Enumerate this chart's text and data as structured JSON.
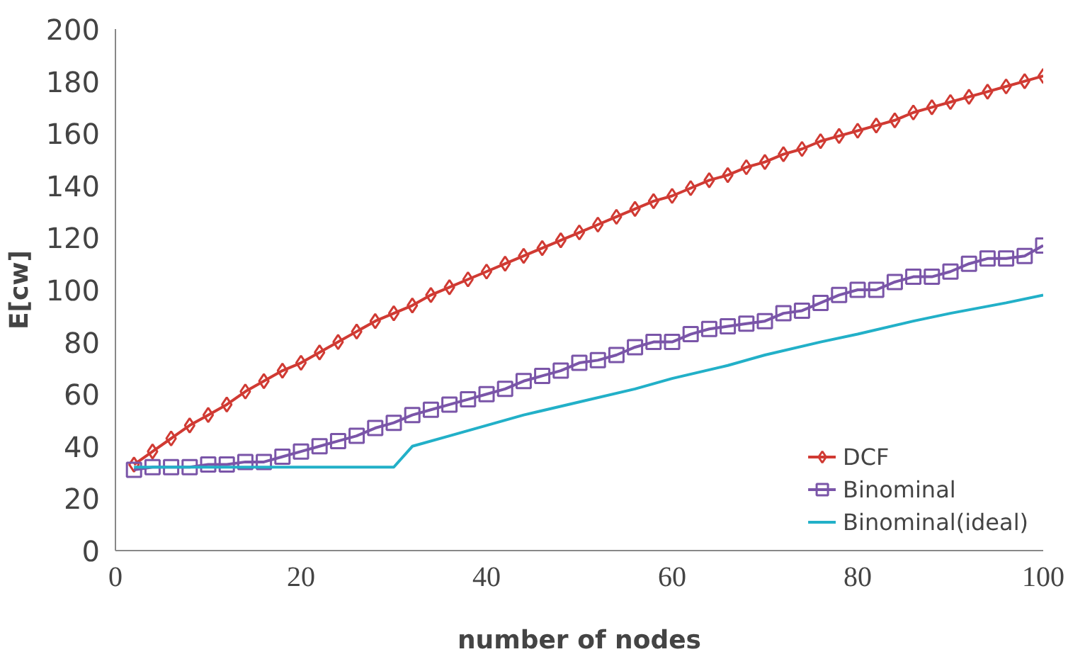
{
  "chart_data": {
    "type": "line",
    "xlabel": "number of nodes",
    "ylabel": "E[cw]",
    "xlim": [
      0,
      100
    ],
    "xticks": [
      0,
      20,
      40,
      60,
      80,
      100
    ],
    "ylim": [
      0,
      200
    ],
    "yticks": [
      0,
      20,
      40,
      60,
      80,
      100,
      120,
      140,
      160,
      180,
      200
    ],
    "grid": false,
    "legend": "bottom right",
    "line_style": "solid",
    "x": [
      2,
      4,
      6,
      8,
      10,
      12,
      14,
      16,
      18,
      20,
      22,
      24,
      26,
      28,
      30,
      32,
      34,
      36,
      38,
      40,
      42,
      44,
      46,
      48,
      50,
      52,
      54,
      56,
      58,
      60,
      62,
      64,
      66,
      68,
      70,
      72,
      74,
      76,
      78,
      80,
      82,
      84,
      86,
      88,
      90,
      92,
      94,
      96,
      98,
      100
    ],
    "series": [
      {
        "name": "DCF",
        "color": "#d03a33",
        "marker": "diamond",
        "values": [
          33,
          38,
          43,
          48,
          52,
          56,
          61,
          65,
          69,
          72,
          76,
          80,
          84,
          88,
          91,
          94,
          98,
          101,
          104,
          107,
          110,
          113,
          116,
          119,
          122,
          125,
          128,
          131,
          134,
          136,
          139,
          142,
          144,
          147,
          149,
          152,
          154,
          157,
          159,
          161,
          163,
          165,
          168,
          170,
          172,
          174,
          176,
          178,
          180,
          182
        ]
      },
      {
        "name": "Binominal",
        "color": "#7a55a8",
        "marker": "square",
        "values": [
          31,
          32,
          32,
          32,
          33,
          33,
          34,
          34,
          36,
          38,
          40,
          42,
          44,
          47,
          49,
          52,
          54,
          56,
          58,
          60,
          62,
          65,
          67,
          69,
          72,
          73,
          75,
          78,
          80,
          80,
          83,
          85,
          86,
          87,
          88,
          91,
          92,
          95,
          98,
          100,
          100,
          103,
          105,
          105,
          107,
          110,
          112,
          112,
          113,
          117
        ]
      },
      {
        "name": "Binominal(ideal)",
        "color": "#22b0c8",
        "marker": "none",
        "x": [
          2,
          30,
          32,
          36,
          40,
          44,
          50,
          56,
          60,
          66,
          70,
          76,
          80,
          86,
          90,
          96,
          100
        ],
        "values": [
          32,
          32,
          40,
          44,
          48,
          52,
          57,
          62,
          66,
          71,
          75,
          80,
          83,
          88,
          91,
          95,
          98
        ]
      }
    ]
  }
}
